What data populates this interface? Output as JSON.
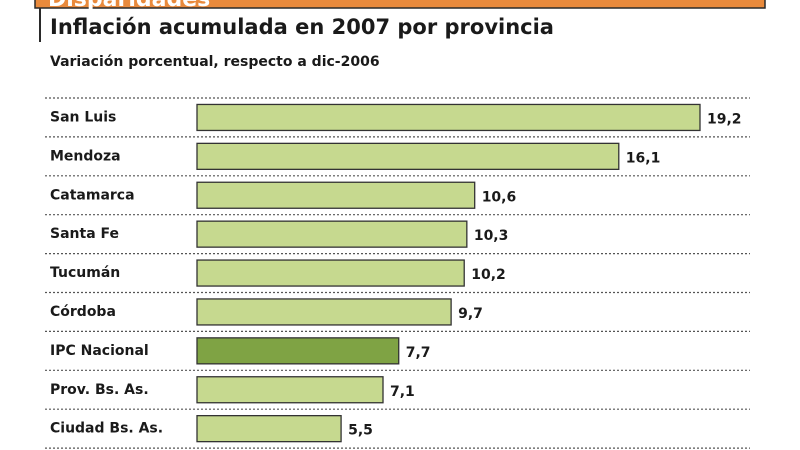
{
  "chart_data": {
    "type": "barh",
    "header": "Disparidades",
    "title": "Inflación acumulada en 2007 por provincia",
    "subtitle": "Variación porcentual, respecto a dic-2006",
    "categories": [
      "San Luis",
      "Mendoza",
      "Catamarca",
      "Santa Fe",
      "Tucumán",
      "Córdoba",
      "IPC Nacional",
      "Prov. Bs. As.",
      "Ciudad Bs. As."
    ],
    "values": [
      19.2,
      16.1,
      10.6,
      10.3,
      10.2,
      9.7,
      7.7,
      7.1,
      5.5
    ],
    "value_labels": [
      "19,2",
      "16,1",
      "10,6",
      "10,3",
      "10,2",
      "9,7",
      "7,7",
      "7,1",
      "5,5"
    ],
    "colors": [
      "#c6d98f",
      "#c6d98f",
      "#c6d98f",
      "#c6d98f",
      "#c6d98f",
      "#c6d98f",
      "#7fa344",
      "#c6d98f",
      "#c6d98f"
    ]
  }
}
